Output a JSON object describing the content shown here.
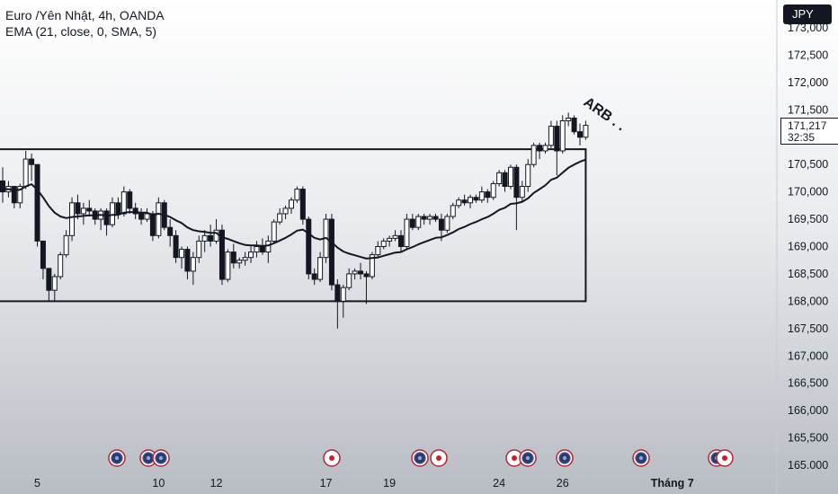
{
  "legend": {
    "symbol_line": "Euro /Yên Nhật, 4h, OANDA",
    "indicator_line": "EMA (21, close, 0, SMA, 5)"
  },
  "currency_button": "JPY",
  "last_price": {
    "value": "171,217",
    "countdown": "32:35"
  },
  "annotation": "ARB . .",
  "colors": {
    "up": "#ffffff",
    "down": "#131722",
    "wick": "#131722",
    "ema": "#131722",
    "box": "#131722"
  },
  "icons": [
    "event-blue-icon",
    "event-red-icon"
  ],
  "chart_data": {
    "type": "candlestick",
    "y_ticks": [
      "165.000",
      "165,500",
      "166,000",
      "166,500",
      "167,000",
      "167,500",
      "168,000",
      "168,500",
      "169,000",
      "169,500",
      "170,000",
      "170,500",
      "171,000",
      "171,500",
      "172,000",
      "172,500",
      "173,000"
    ],
    "ylim": [
      165.0,
      173.0
    ],
    "x_ticks": [
      {
        "label": "5",
        "index": 6
      },
      {
        "label": "10",
        "index": 27
      },
      {
        "label": "12",
        "index": 37
      },
      {
        "label": "17",
        "index": 56
      },
      {
        "label": "19",
        "index": 67
      },
      {
        "label": "24",
        "index": 86
      },
      {
        "label": "26",
        "index": 97
      },
      {
        "label": "Tháng 7",
        "index": 116
      }
    ],
    "range_box": {
      "high": 170.78,
      "low": 168.0,
      "end_index": 101
    },
    "ohlc": [
      [
        170.2,
        170.45,
        169.8,
        170.0
      ],
      [
        170.0,
        170.2,
        169.9,
        170.1
      ],
      [
        170.1,
        170.1,
        169.7,
        169.8
      ],
      [
        169.8,
        170.15,
        169.7,
        170.1
      ],
      [
        170.1,
        170.75,
        170.05,
        170.6
      ],
      [
        170.6,
        170.7,
        170.2,
        170.5
      ],
      [
        170.5,
        170.5,
        169.0,
        169.1
      ],
      [
        169.1,
        169.1,
        168.4,
        168.6
      ],
      [
        168.6,
        168.6,
        168.0,
        168.2
      ],
      [
        168.2,
        168.5,
        168.0,
        168.45
      ],
      [
        168.45,
        168.9,
        168.4,
        168.85
      ],
      [
        168.85,
        169.3,
        168.8,
        169.2
      ],
      [
        169.2,
        169.9,
        169.1,
        169.8
      ],
      [
        169.8,
        169.95,
        169.5,
        169.6
      ],
      [
        169.6,
        169.8,
        169.4,
        169.7
      ],
      [
        169.7,
        169.85,
        169.55,
        169.65
      ],
      [
        169.65,
        169.7,
        169.4,
        169.5
      ],
      [
        169.5,
        169.7,
        169.3,
        169.65
      ],
      [
        169.65,
        169.7,
        169.2,
        169.4
      ],
      [
        169.4,
        169.9,
        169.35,
        169.8
      ],
      [
        169.8,
        169.9,
        169.5,
        169.6
      ],
      [
        169.6,
        170.1,
        169.55,
        170.0
      ],
      [
        170.0,
        170.05,
        169.6,
        169.7
      ],
      [
        169.7,
        169.8,
        169.5,
        169.6
      ],
      [
        169.6,
        169.7,
        169.4,
        169.5
      ],
      [
        169.5,
        169.7,
        169.45,
        169.6
      ],
      [
        169.6,
        169.65,
        169.1,
        169.2
      ],
      [
        169.2,
        169.9,
        169.15,
        169.8
      ],
      [
        169.8,
        169.85,
        169.3,
        169.35
      ],
      [
        169.35,
        169.5,
        169.0,
        169.2
      ],
      [
        169.2,
        169.3,
        168.7,
        168.8
      ],
      [
        168.8,
        169.0,
        168.6,
        168.95
      ],
      [
        168.95,
        169.0,
        168.4,
        168.55
      ],
      [
        168.55,
        168.9,
        168.3,
        168.8
      ],
      [
        168.8,
        169.2,
        168.7,
        169.1
      ],
      [
        169.1,
        169.3,
        168.9,
        169.2
      ],
      [
        169.2,
        169.4,
        169.0,
        169.1
      ],
      [
        169.1,
        169.5,
        169.05,
        169.3
      ],
      [
        169.3,
        169.4,
        168.3,
        168.4
      ],
      [
        168.4,
        168.95,
        168.35,
        168.9
      ],
      [
        168.9,
        169.05,
        168.6,
        168.7
      ],
      [
        168.7,
        168.8,
        168.6,
        168.75
      ],
      [
        168.75,
        168.9,
        168.65,
        168.8
      ],
      [
        168.8,
        169.0,
        168.7,
        168.9
      ],
      [
        168.9,
        169.1,
        168.8,
        169.0
      ],
      [
        169.0,
        169.15,
        168.85,
        168.9
      ],
      [
        168.9,
        169.2,
        168.7,
        169.1
      ],
      [
        169.1,
        169.5,
        169.05,
        169.45
      ],
      [
        169.45,
        169.7,
        169.4,
        169.6
      ],
      [
        169.6,
        169.75,
        169.5,
        169.7
      ],
      [
        169.7,
        169.9,
        169.6,
        169.85
      ],
      [
        169.85,
        170.1,
        169.8,
        170.05
      ],
      [
        170.05,
        170.1,
        169.4,
        169.5
      ],
      [
        169.5,
        169.55,
        168.4,
        168.5
      ],
      [
        168.5,
        168.6,
        168.3,
        168.4
      ],
      [
        168.4,
        168.9,
        168.35,
        168.8
      ],
      [
        168.8,
        169.6,
        168.7,
        169.5
      ],
      [
        169.5,
        169.6,
        168.2,
        168.3
      ],
      [
        168.3,
        168.4,
        167.5,
        168.0
      ],
      [
        168.0,
        168.3,
        167.7,
        168.25
      ],
      [
        168.25,
        168.6,
        168.2,
        168.5
      ],
      [
        168.5,
        168.6,
        168.4,
        168.55
      ],
      [
        168.55,
        168.7,
        168.4,
        168.5
      ],
      [
        168.5,
        168.55,
        167.95,
        168.45
      ],
      [
        168.45,
        168.9,
        168.4,
        168.85
      ],
      [
        168.85,
        169.1,
        168.8,
        169.0
      ],
      [
        169.0,
        169.15,
        168.95,
        169.1
      ],
      [
        169.1,
        169.2,
        169.0,
        169.15
      ],
      [
        169.15,
        169.3,
        169.1,
        169.2
      ],
      [
        169.2,
        169.3,
        168.9,
        169.0
      ],
      [
        169.0,
        169.6,
        168.95,
        169.5
      ],
      [
        169.5,
        169.6,
        169.3,
        169.35
      ],
      [
        169.35,
        169.6,
        169.3,
        169.55
      ],
      [
        169.55,
        169.6,
        169.4,
        169.5
      ],
      [
        169.5,
        169.6,
        169.4,
        169.55
      ],
      [
        169.55,
        169.6,
        169.45,
        169.5
      ],
      [
        169.5,
        169.6,
        169.1,
        169.3
      ],
      [
        169.3,
        169.6,
        169.25,
        169.55
      ],
      [
        169.55,
        169.8,
        169.5,
        169.75
      ],
      [
        169.75,
        169.9,
        169.7,
        169.85
      ],
      [
        169.85,
        169.95,
        169.75,
        169.8
      ],
      [
        169.8,
        169.95,
        169.7,
        169.9
      ],
      [
        169.9,
        169.95,
        169.8,
        169.85
      ],
      [
        169.85,
        170.1,
        169.8,
        170.0
      ],
      [
        170.0,
        170.05,
        169.8,
        169.9
      ],
      [
        169.9,
        170.2,
        169.85,
        170.15
      ],
      [
        170.15,
        170.4,
        170.1,
        170.35
      ],
      [
        170.35,
        170.4,
        170.0,
        170.1
      ],
      [
        170.1,
        170.5,
        170.05,
        170.45
      ],
      [
        170.45,
        170.5,
        169.3,
        169.9
      ],
      [
        169.9,
        170.2,
        169.8,
        170.1
      ],
      [
        170.1,
        170.6,
        170.0,
        170.5
      ],
      [
        170.5,
        170.9,
        170.45,
        170.85
      ],
      [
        170.85,
        170.9,
        170.6,
        170.75
      ],
      [
        170.75,
        170.9,
        170.7,
        170.85
      ],
      [
        170.85,
        171.3,
        170.8,
        171.2
      ],
      [
        171.2,
        171.3,
        170.3,
        170.75
      ],
      [
        170.75,
        171.4,
        170.7,
        171.3
      ],
      [
        171.3,
        171.45,
        171.2,
        171.35
      ],
      [
        171.35,
        171.4,
        171.05,
        171.1
      ],
      [
        171.1,
        171.25,
        170.85,
        171.0
      ],
      [
        171.0,
        171.3,
        170.95,
        171.217
      ]
    ],
    "ema": [
      170.05,
      170.05,
      170.03,
      170.04,
      170.1,
      170.14,
      170.04,
      169.9,
      169.74,
      169.62,
      169.55,
      169.52,
      169.54,
      169.55,
      169.56,
      169.57,
      169.57,
      169.58,
      169.56,
      169.58,
      169.58,
      169.62,
      169.63,
      169.63,
      169.62,
      169.62,
      169.58,
      169.6,
      169.58,
      169.54,
      169.48,
      169.43,
      169.35,
      169.3,
      169.28,
      169.27,
      169.25,
      169.25,
      169.17,
      169.14,
      169.1,
      169.06,
      169.03,
      169.02,
      169.02,
      169.01,
      169.02,
      169.06,
      169.11,
      169.16,
      169.22,
      169.29,
      169.31,
      169.24,
      169.16,
      169.13,
      169.16,
      169.08,
      168.98,
      168.91,
      168.87,
      168.84,
      168.81,
      168.78,
      168.79,
      168.8,
      168.83,
      168.86,
      168.89,
      168.9,
      168.95,
      168.99,
      169.04,
      169.08,
      169.12,
      169.16,
      169.17,
      169.21,
      169.26,
      169.32,
      169.36,
      169.41,
      169.45,
      169.5,
      169.54,
      169.6,
      169.67,
      169.71,
      169.78,
      169.79,
      169.82,
      169.88,
      169.98,
      170.05,
      170.12,
      170.22,
      170.26,
      170.35,
      170.44,
      170.5,
      170.55,
      170.59
    ]
  }
}
